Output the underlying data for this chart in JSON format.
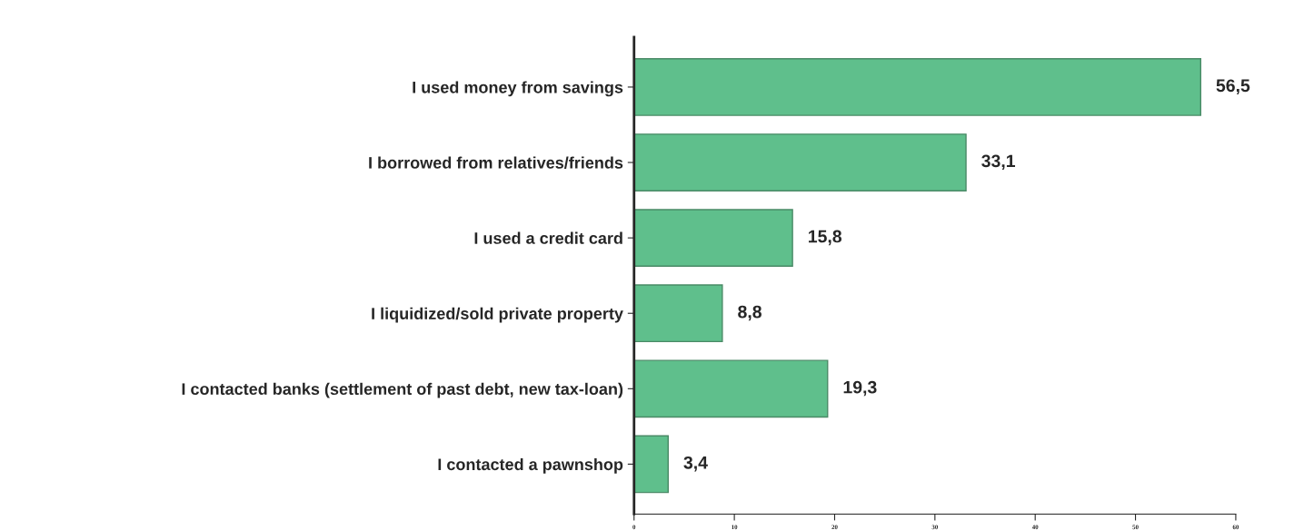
{
  "chart_data": {
    "type": "bar",
    "orientation": "horizontal",
    "categories": [
      "I used money from savings",
      "I borrowed from relatives/friends",
      "I used a credit card",
      "I liquidized/sold private property",
      "I contacted banks (settlement of past debt, new tax-loan)",
      "I contacted a pawnshop"
    ],
    "values": [
      56.5,
      33.1,
      15.8,
      8.8,
      19.3,
      3.4
    ],
    "value_labels": [
      "56,5",
      "33,1",
      "15,8",
      "8,8",
      "19,3",
      "3,4"
    ],
    "color": "#5fbf8c",
    "xlim": [
      0,
      60
    ],
    "xticks": [
      0,
      10,
      20,
      30,
      40,
      50,
      60
    ],
    "grid": false
  }
}
